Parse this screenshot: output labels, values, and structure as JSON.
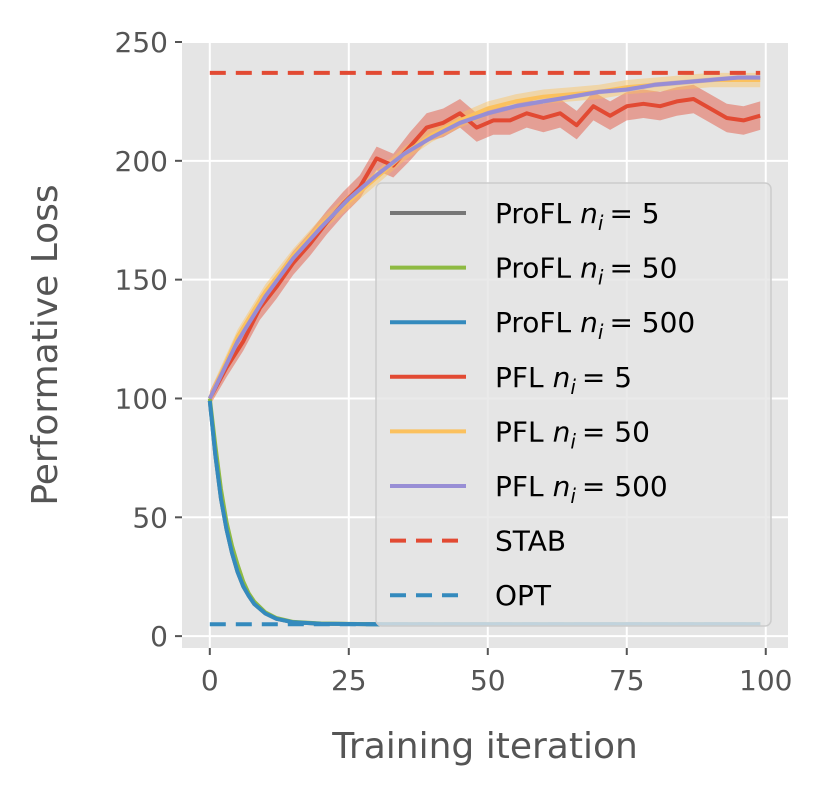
{
  "chart_data": {
    "type": "line",
    "title": "",
    "xlabel": "Training iteration",
    "ylabel": "Performative Loss",
    "xlim": [
      -5,
      104
    ],
    "ylim": [
      -5,
      250
    ],
    "xticks": [
      0,
      25,
      50,
      75,
      100
    ],
    "yticks": [
      0,
      50,
      100,
      150,
      200,
      250
    ],
    "grid": true,
    "legend_position": "right",
    "series": [
      {
        "name": "ProFL n_i = 5",
        "label_main": "ProFL",
        "label_math": "n_i = 5",
        "color": "#777777",
        "style": "solid",
        "x": [
          0,
          1,
          2,
          3,
          4,
          5,
          6,
          7,
          8,
          10,
          12,
          15,
          20,
          30,
          50,
          75,
          99
        ],
        "y": [
          99,
          76,
          58,
          45,
          35,
          27,
          21,
          17,
          13.5,
          9.5,
          7.3,
          5.8,
          5.2,
          5.0,
          5.0,
          5.0,
          5.0
        ]
      },
      {
        "name": "ProFL n_i = 50",
        "label_main": "ProFL",
        "label_math": "n_i = 50",
        "color": "#8EBA42",
        "style": "solid",
        "x": [
          0,
          1,
          2,
          3,
          4,
          5,
          6,
          7,
          8,
          10,
          12,
          15,
          20,
          30,
          50,
          75,
          99
        ],
        "y": [
          100,
          80,
          62,
          48,
          38,
          30,
          23,
          18,
          14.5,
          10,
          7.6,
          6.0,
          5.3,
          5.0,
          5.0,
          5.0,
          5.0
        ]
      },
      {
        "name": "ProFL n_i = 500",
        "label_main": "ProFL",
        "label_math": "n_i = 500",
        "color": "#348ABD",
        "style": "solid",
        "x": [
          0,
          1,
          2,
          3,
          4,
          5,
          6,
          7,
          8,
          10,
          12,
          15,
          20,
          30,
          50,
          75,
          99
        ],
        "y": [
          99,
          76,
          58,
          45,
          35,
          27,
          21,
          17,
          13.5,
          9.5,
          7.3,
          5.8,
          5.2,
          5.0,
          5.0,
          5.0,
          5.0
        ]
      },
      {
        "name": "PFL n_i = 5",
        "label_main": "PFL",
        "label_math": "n_i = 5",
        "color": "#E24A33",
        "style": "solid",
        "x": [
          0,
          3,
          6,
          9,
          12,
          15,
          18,
          21,
          24,
          27,
          30,
          33,
          36,
          39,
          42,
          45,
          48,
          51,
          54,
          57,
          60,
          63,
          66,
          69,
          72,
          75,
          78,
          81,
          84,
          87,
          90,
          93,
          96,
          99
        ],
        "y": [
          100,
          113,
          124,
          138,
          147,
          157,
          165,
          174,
          182,
          189,
          201,
          198,
          206,
          214,
          216,
          220,
          214,
          217,
          217,
          220,
          218,
          220,
          215,
          223,
          219,
          223,
          224,
          223,
          225,
          226,
          222,
          218,
          217,
          219
        ],
        "band": [
          3,
          4,
          4,
          5,
          5,
          5,
          5,
          5,
          5,
          5,
          5,
          5,
          6,
          6,
          6,
          6,
          6,
          6,
          6,
          6,
          6,
          6,
          6,
          6,
          6,
          6,
          6,
          6,
          6,
          6,
          6,
          6,
          6,
          6
        ]
      },
      {
        "name": "PFL n_i = 50",
        "label_main": "PFL",
        "label_math": "n_i = 50",
        "color": "#FBC15E",
        "style": "solid",
        "x": [
          0,
          5,
          10,
          15,
          20,
          25,
          30,
          35,
          40,
          45,
          50,
          55,
          60,
          65,
          70,
          75,
          80,
          85,
          90,
          95,
          99
        ],
        "y": [
          100,
          126,
          145,
          160,
          173,
          183,
          193,
          203,
          211,
          217,
          222,
          225,
          227,
          228,
          229,
          231,
          232,
          233,
          234,
          234,
          234
        ],
        "band": [
          3,
          3,
          3,
          3,
          3,
          3,
          3,
          3,
          3,
          3,
          3,
          3,
          3,
          3,
          3,
          3,
          3,
          3,
          3,
          3,
          3
        ]
      },
      {
        "name": "PFL n_i = 500",
        "label_main": "PFL",
        "label_math": "n_i = 500",
        "color": "#988ED5",
        "style": "solid",
        "x": [
          0,
          5,
          10,
          15,
          20,
          25,
          30,
          35,
          40,
          45,
          50,
          55,
          60,
          65,
          70,
          75,
          80,
          85,
          90,
          95,
          99
        ],
        "y": [
          100,
          124,
          143,
          159,
          172,
          184,
          194,
          203,
          210,
          216,
          220,
          223,
          225,
          227,
          229,
          230,
          232,
          233,
          234,
          235,
          235
        ],
        "band": [
          1,
          1,
          1,
          1,
          1,
          1,
          1,
          1,
          1,
          1,
          1,
          1,
          1,
          1,
          1,
          1,
          1,
          1,
          1,
          1,
          1
        ]
      },
      {
        "name": "STAB",
        "label_main": "STAB",
        "label_math": "",
        "color": "#E24A33",
        "style": "dashed",
        "x": [
          0,
          99
        ],
        "y": [
          237,
          237
        ]
      },
      {
        "name": "OPT",
        "label_main": "OPT",
        "label_math": "",
        "color": "#348ABD",
        "style": "dashed",
        "x": [
          0,
          99
        ],
        "y": [
          5,
          5
        ]
      }
    ]
  }
}
